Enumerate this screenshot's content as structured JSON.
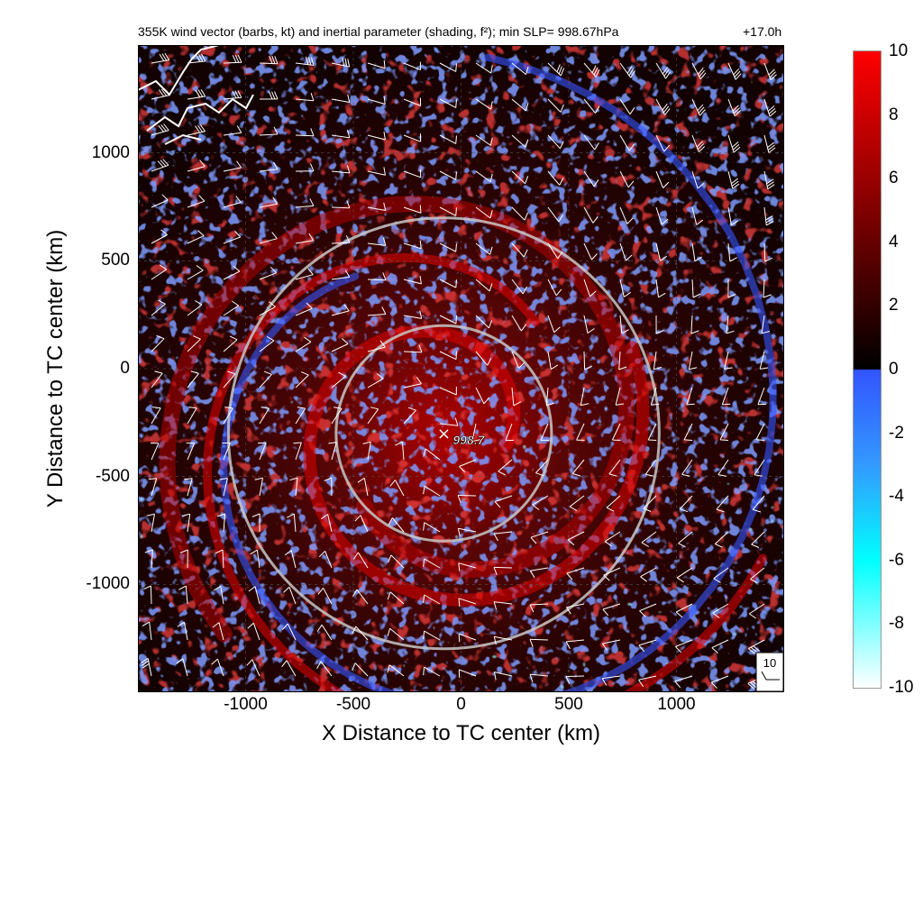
{
  "chart_data": {
    "type": "heatmap",
    "title": "355K wind vector (barbs, kt) and inertial parameter (shading, f²); min SLP= 998.67hPa",
    "time_label": "+17.0h",
    "xlabel": "X Distance to TC center (km)",
    "ylabel": "Y Distance to TC center (km)",
    "xlim": [
      -1500,
      1500
    ],
    "ylim": [
      -1500,
      1500
    ],
    "x_ticks": [
      -1000,
      -500,
      0,
      500,
      1000
    ],
    "x_tick_labels": [
      "-1000",
      "-500",
      "0",
      "500",
      "1000"
    ],
    "y_ticks": [
      1000,
      500,
      0,
      -500,
      -1000
    ],
    "y_tick_labels": [
      "1000",
      "500",
      "0",
      "-500",
      "-1000"
    ],
    "colorbar": {
      "min": -10,
      "max": 10,
      "ticks": [
        10,
        8,
        6,
        4,
        2,
        0,
        -2,
        -4,
        -6,
        -8,
        -10
      ],
      "tick_labels": [
        "10",
        "8",
        "6",
        "4",
        "2",
        "0",
        "-2",
        "-4",
        "-6",
        "-8",
        "-10"
      ],
      "colors": {
        "high": "#ff0000",
        "mid_pos": "#000000",
        "zero_neg": "#3355ff",
        "mid_neg": "#00ffff",
        "low": "#ffffff"
      }
    },
    "center_marker": {
      "x": -80,
      "y": -300,
      "label": "998.7"
    },
    "range_rings": [
      {
        "center_x": -80,
        "center_y": -300,
        "radius_km": 500
      },
      {
        "center_x": -80,
        "center_y": -300,
        "radius_km": 1000
      }
    ],
    "barb_reference": {
      "label": "10"
    },
    "grid": true
  }
}
